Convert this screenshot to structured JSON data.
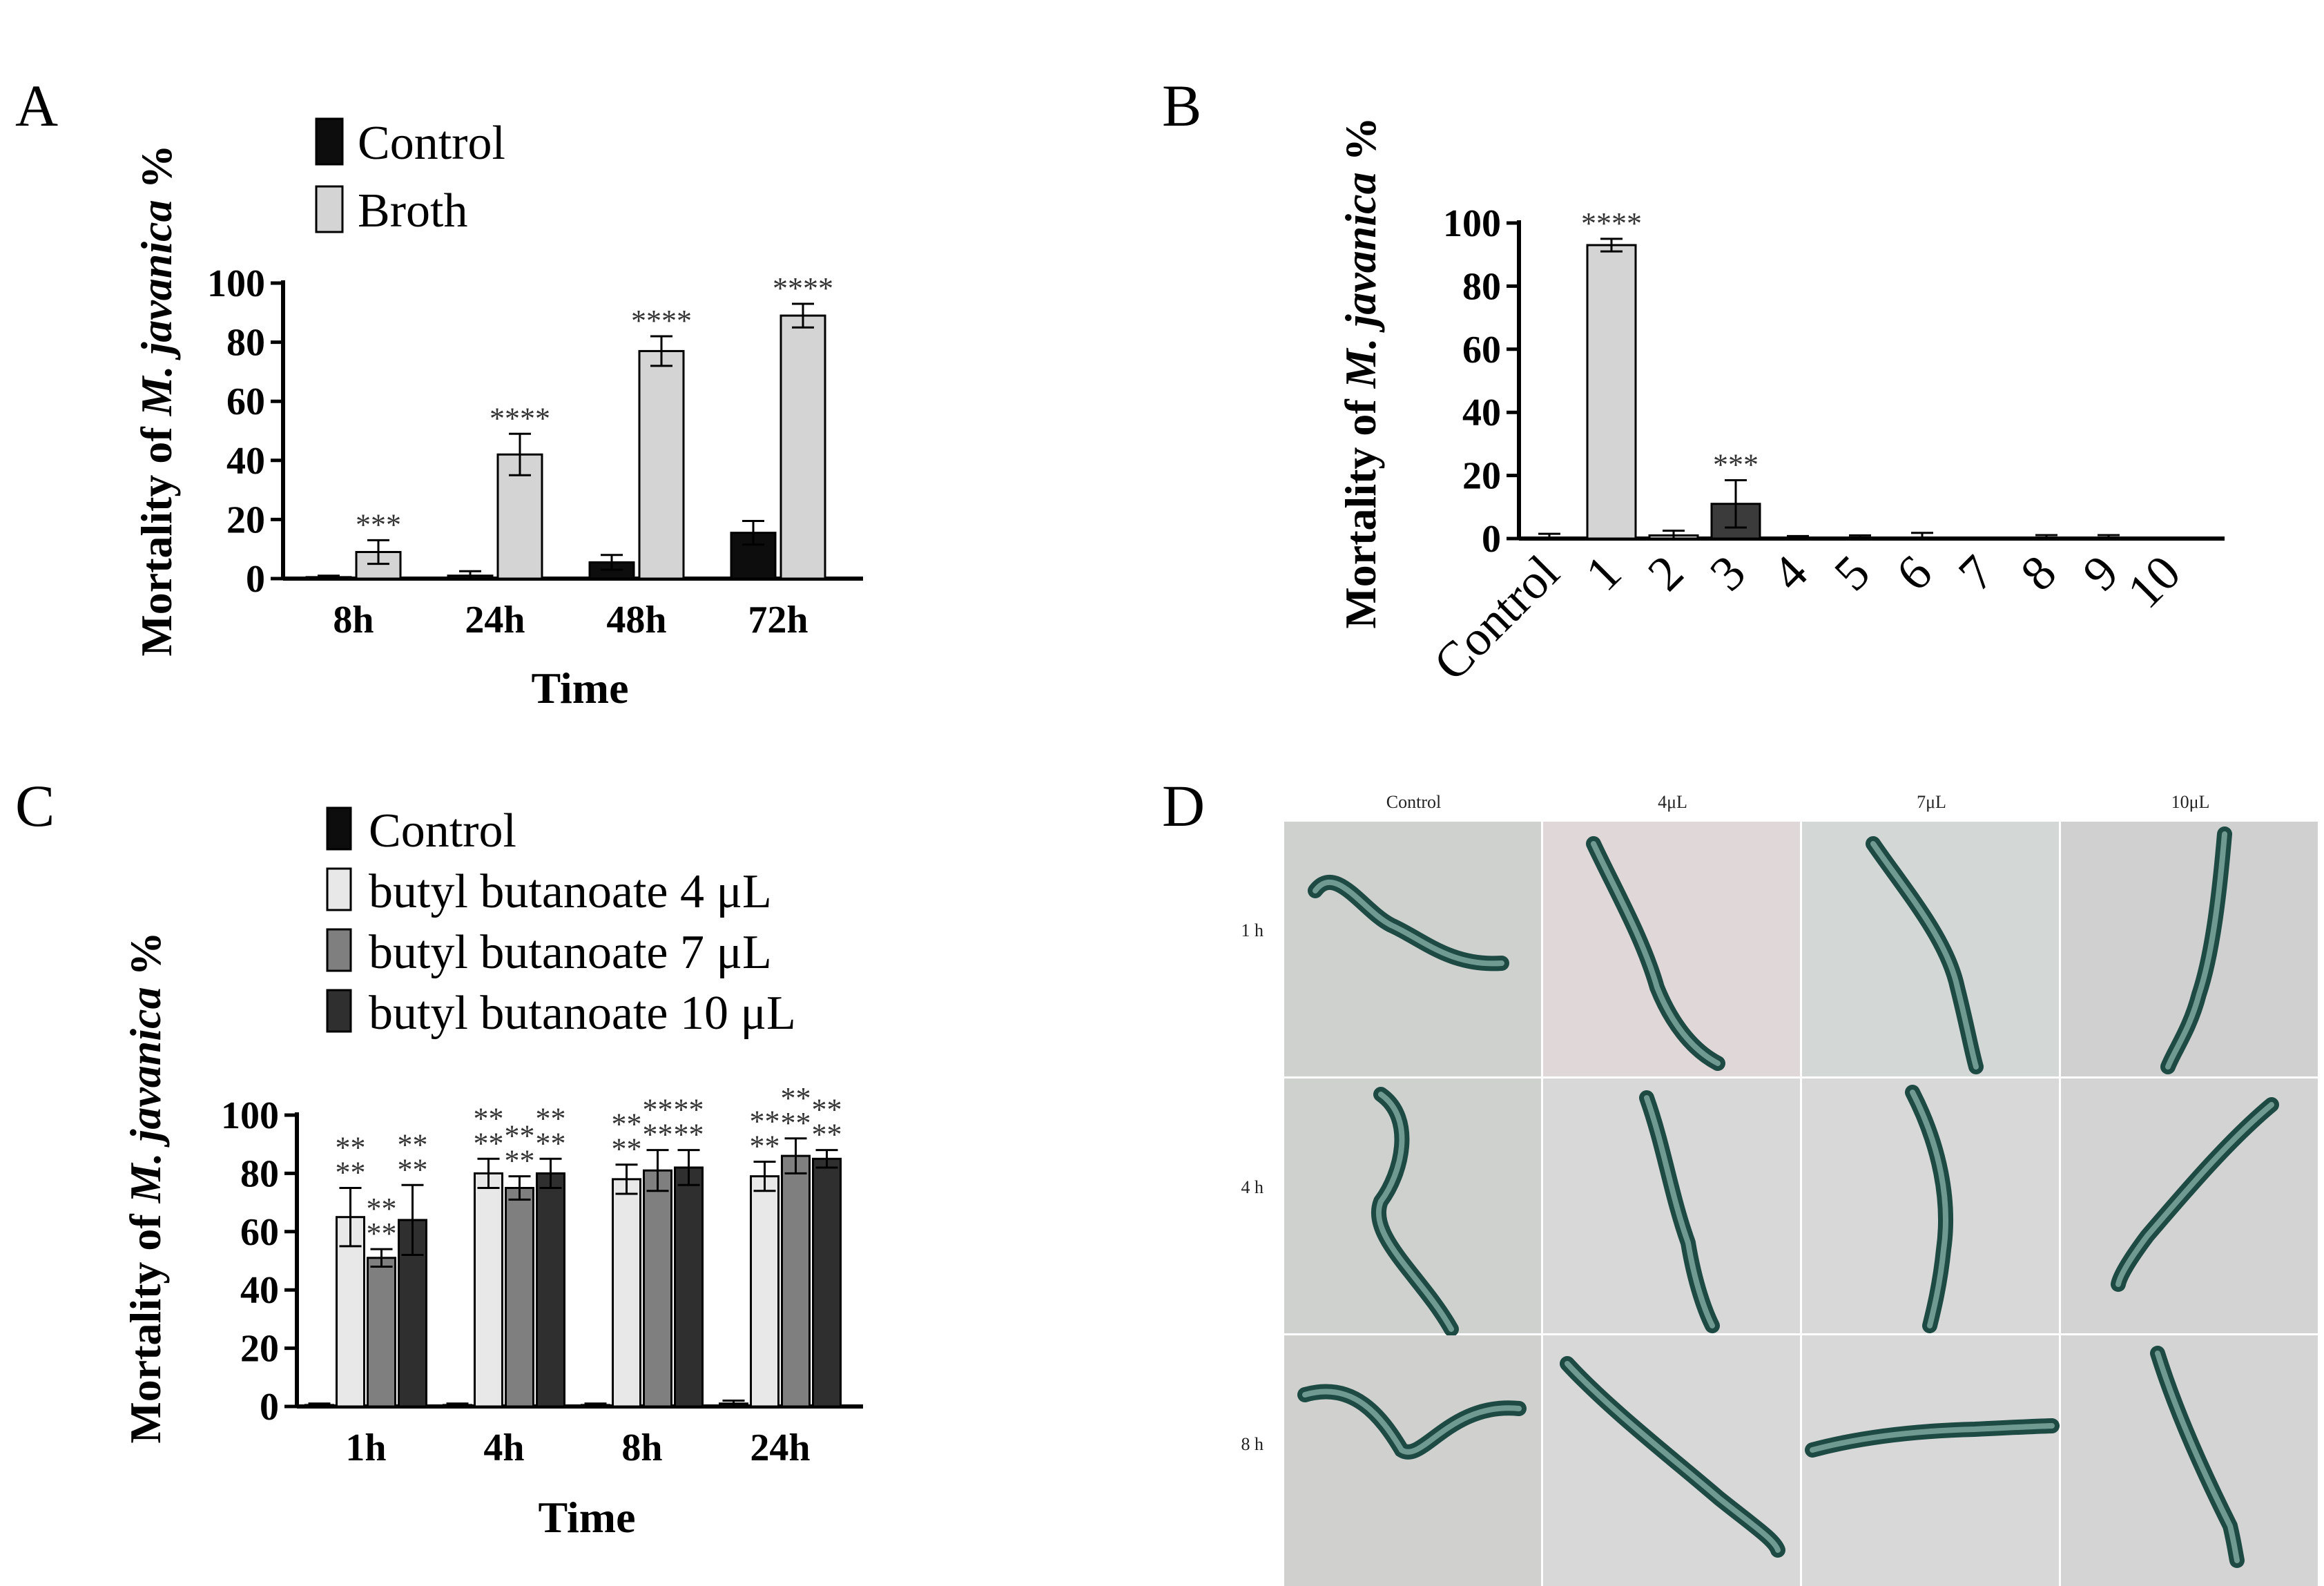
{
  "figure": {
    "panels": [
      "A",
      "B",
      "C",
      "D"
    ]
  },
  "colors": {
    "control": "#0d0d0d",
    "light": "#d4d4d4",
    "c_4ul": "#e8e8e8",
    "c_7ul": "#7f7f7f",
    "c_10ul": "#2f2f2f",
    "b_bar3": "#3b3b3b"
  },
  "chart_data": [
    {
      "panel": "A",
      "type": "bar",
      "title": "",
      "xlabel": "Time",
      "ylabel_prefix": "Mortality of ",
      "ylabel_italic": "M. javanica",
      "ylabel_suffix": " %",
      "ylim": [
        0,
        100
      ],
      "yticks": [
        0,
        20,
        40,
        60,
        80,
        100
      ],
      "categories": [
        "8h",
        "24h",
        "48h",
        "72h"
      ],
      "legend_position": "top-left",
      "series": [
        {
          "name": "Control",
          "color_key": "control",
          "values": [
            0.5,
            1,
            5.5,
            15.5
          ],
          "errors": [
            0.5,
            1.5,
            2.5,
            4
          ]
        },
        {
          "name": "Broth",
          "color_key": "light",
          "values": [
            9,
            42,
            77,
            89
          ],
          "errors": [
            4,
            7,
            5,
            4
          ]
        }
      ],
      "annotations": [
        {
          "series": 1,
          "index": 0,
          "text": "***"
        },
        {
          "series": 1,
          "index": 1,
          "text": "****"
        },
        {
          "series": 1,
          "index": 2,
          "text": "****"
        },
        {
          "series": 1,
          "index": 3,
          "text": "****"
        }
      ]
    },
    {
      "panel": "B",
      "type": "bar",
      "title": "",
      "xlabel": "",
      "ylabel_prefix": "Mortality of ",
      "ylabel_italic": "M. javanica",
      "ylabel_suffix": " %",
      "ylim": [
        0,
        100
      ],
      "yticks": [
        0,
        20,
        40,
        60,
        80,
        100
      ],
      "categories": [
        "Control",
        "1",
        "2",
        "3",
        "4",
        "5",
        "6",
        "7",
        "8",
        "9",
        "10"
      ],
      "values": [
        0,
        93,
        1,
        11,
        0.3,
        0.2,
        0.3,
        0,
        0.3,
        0.3,
        0
      ],
      "errors": [
        1.5,
        2,
        1.5,
        7.5,
        0.5,
        0.8,
        1.5,
        0,
        0.8,
        0.8,
        0
      ],
      "bar_color_keys": [
        "light",
        "light",
        "light",
        "b_bar3",
        "light",
        "light",
        "light",
        "light",
        "light",
        "light",
        "light"
      ],
      "annotations": [
        {
          "index": 1,
          "text": "****"
        },
        {
          "index": 3,
          "text": "***"
        }
      ]
    },
    {
      "panel": "C",
      "type": "bar",
      "title": "",
      "xlabel": "Time",
      "ylabel_prefix": "Mortality of ",
      "ylabel_italic": "M. javanica",
      "ylabel_suffix": " %",
      "ylim": [
        0,
        100
      ],
      "yticks": [
        0,
        20,
        40,
        60,
        80,
        100
      ],
      "categories": [
        "1h",
        "4h",
        "8h",
        "24h"
      ],
      "legend_position": "top-left",
      "series": [
        {
          "name": "Control",
          "color_key": "control",
          "values": [
            0.5,
            0.5,
            0.5,
            1
          ],
          "errors": [
            0.5,
            0.5,
            0.5,
            1
          ]
        },
        {
          "name": "butyl butanoate 4 μL",
          "color_key": "c_4ul",
          "values": [
            65,
            80,
            78,
            79
          ],
          "errors": [
            10,
            5,
            5,
            5
          ]
        },
        {
          "name": "butyl butanoate 7 μL",
          "color_key": "c_7ul",
          "values": [
            51,
            75,
            81,
            86
          ],
          "errors": [
            3,
            4,
            7,
            6
          ]
        },
        {
          "name": "butyl butanoate 10 μL",
          "color_key": "c_10ul",
          "values": [
            64,
            80,
            82,
            85
          ],
          "errors": [
            12,
            5,
            6,
            3
          ]
        }
      ],
      "annotation_text": "****"
    }
  ],
  "microscopy": {
    "panel": "D",
    "columns": [
      "Control",
      "4μL",
      "7μL",
      "10μL"
    ],
    "rows": [
      "1 h",
      "4 h",
      "8 h"
    ]
  }
}
